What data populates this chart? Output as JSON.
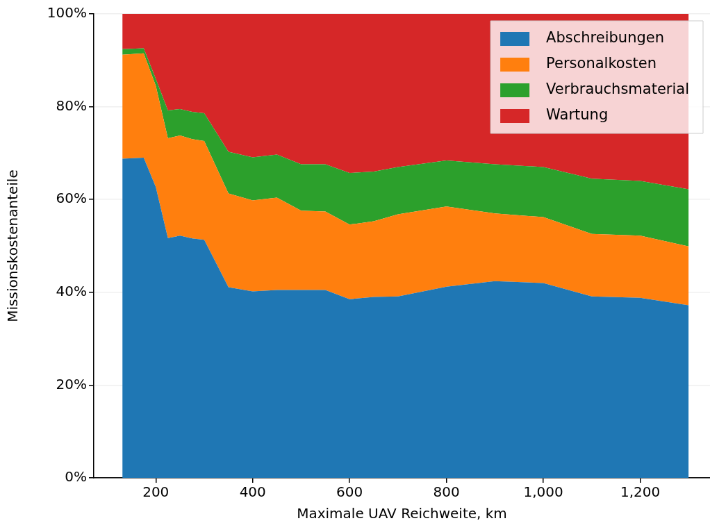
{
  "chart_data": {
    "type": "area",
    "stacked": true,
    "xlabel": "Maximale UAV Reichweite, km",
    "ylabel": "Missionskostenanteile",
    "x": [
      131,
      175,
      200,
      225,
      250,
      275,
      300,
      350,
      400,
      450,
      500,
      550,
      600,
      650,
      700,
      800,
      900,
      1000,
      1100,
      1200,
      1300
    ],
    "series": [
      {
        "name": "Abschreibungen",
        "color": "#1f77b4",
        "values": [
          68.8,
          69.0,
          62.7,
          51.7,
          52.2,
          51.6,
          51.3,
          41.1,
          40.2,
          40.5,
          40.5,
          40.5,
          38.5,
          39.0,
          39.1,
          41.2,
          42.4,
          42.0,
          39.1,
          38.8,
          37.2
        ]
      },
      {
        "name": "Personalkosten",
        "color": "#ff7f0e",
        "values": [
          22.4,
          22.5,
          21.8,
          21.5,
          21.6,
          21.4,
          21.3,
          20.2,
          19.6,
          19.9,
          17.1,
          16.9,
          16.1,
          16.3,
          17.7,
          17.3,
          14.6,
          14.2,
          13.5,
          13.4,
          12.7
        ]
      },
      {
        "name": "Verbrauchsmaterial",
        "color": "#2ca02c",
        "values": [
          1.2,
          1.1,
          1.5,
          6.0,
          5.7,
          5.9,
          6.0,
          9.0,
          9.3,
          9.3,
          10.0,
          10.2,
          11.1,
          10.7,
          10.2,
          9.9,
          10.6,
          10.8,
          11.9,
          11.8,
          12.3
        ]
      },
      {
        "name": "Wartung",
        "color": "#d62728",
        "values": [
          7.6,
          7.4,
          14.0,
          20.8,
          20.5,
          21.1,
          21.4,
          29.7,
          30.9,
          30.3,
          32.4,
          32.4,
          34.3,
          34.0,
          33.0,
          31.6,
          32.4,
          33.0,
          35.5,
          36.0,
          37.8
        ]
      }
    ],
    "xlim": [
      72,
      1344
    ],
    "xticks": [
      200,
      400,
      600,
      800,
      {
        "value": 1000,
        "label": "1,000"
      },
      {
        "value": 1200,
        "label": "1,200"
      }
    ],
    "ylim": [
      0,
      100
    ],
    "yticks": [
      {
        "value": 0,
        "label": "0%"
      },
      {
        "value": 20,
        "label": "20%"
      },
      {
        "value": 40,
        "label": "40%"
      },
      {
        "value": 60,
        "label": "60%"
      },
      {
        "value": 80,
        "label": "80%"
      },
      {
        "value": 100,
        "label": "100%"
      }
    ],
    "grid": true,
    "legend": "top right"
  }
}
